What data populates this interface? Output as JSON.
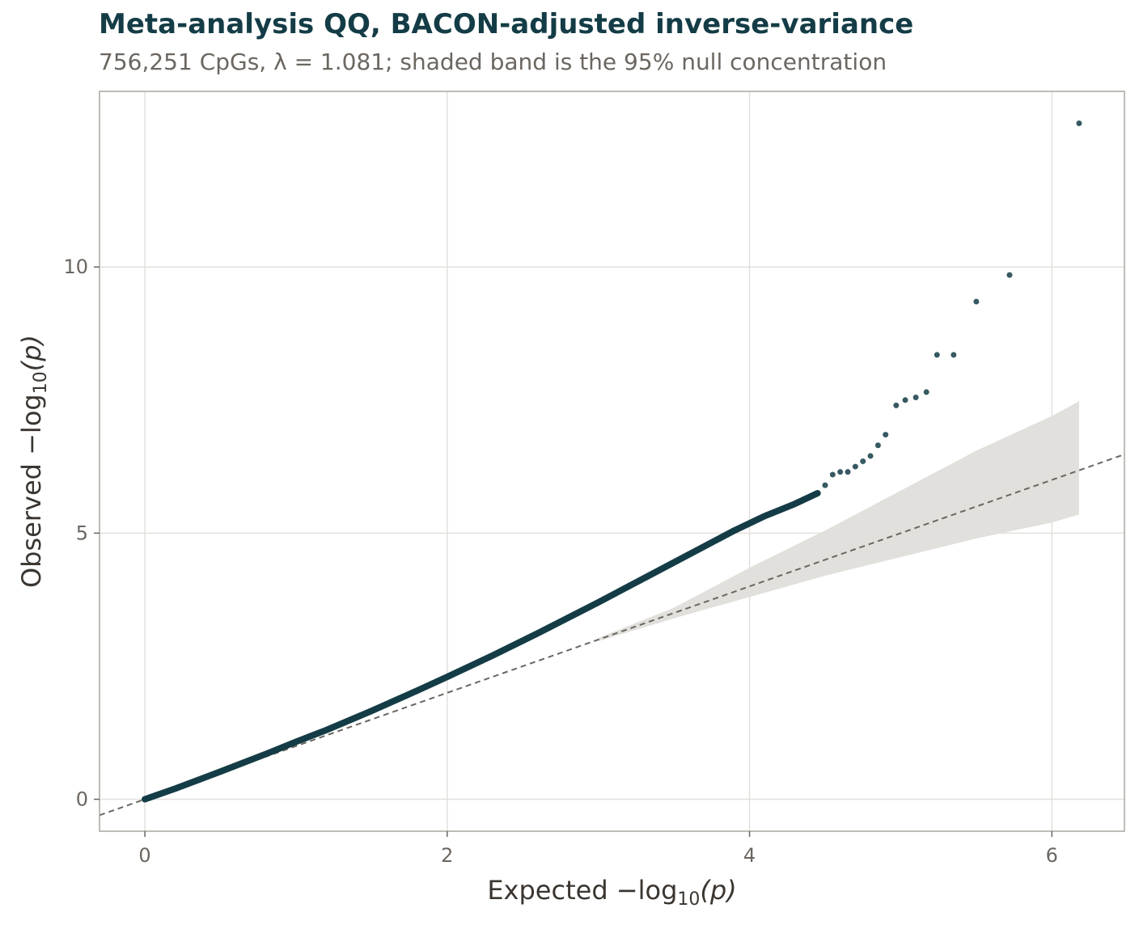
{
  "chart_data": {
    "type": "scatter",
    "title": "Meta-analysis QQ, BACON-adjusted inverse-variance",
    "subtitle": "756,251 CpGs, λ = 1.081; shaded band is the 95% null concentration",
    "xlabel": {
      "prefix": "Expected −log",
      "sub": "10",
      "suffix": "(p)"
    },
    "ylabel": {
      "prefix": "Observed −log",
      "sub": "10",
      "suffix": "(p)"
    },
    "xlim": [
      -0.3,
      6.48
    ],
    "ylim": [
      -0.6,
      13.3
    ],
    "x_ticks": [
      0,
      2,
      4,
      6
    ],
    "y_ticks": [
      0,
      5,
      10
    ],
    "grid": true,
    "n_tests": 756251,
    "lambda": 1.081,
    "reference_line": {
      "slope": 1,
      "intercept": 0,
      "style": "dashed"
    },
    "confidence_band": {
      "level": 0.95,
      "points": [
        {
          "x": 3.0,
          "lo": 2.97,
          "hi": 3.03
        },
        {
          "x": 3.5,
          "lo": 3.4,
          "hi": 3.6
        },
        {
          "x": 4.0,
          "lo": 3.8,
          "hi": 4.35
        },
        {
          "x": 4.5,
          "lo": 4.2,
          "hi": 5.05
        },
        {
          "x": 5.0,
          "lo": 4.55,
          "hi": 5.8
        },
        {
          "x": 5.5,
          "lo": 4.9,
          "hi": 6.55
        },
        {
          "x": 6.0,
          "lo": 5.2,
          "hi": 7.2
        },
        {
          "x": 6.18,
          "lo": 5.35,
          "hi": 7.48
        }
      ]
    },
    "curve": [
      [
        0,
        0
      ],
      [
        0.2,
        0.2
      ],
      [
        0.5,
        0.52
      ],
      [
        0.8,
        0.85
      ],
      [
        1.0,
        1.08
      ],
      [
        1.2,
        1.3
      ],
      [
        1.5,
        1.66
      ],
      [
        1.8,
        2.04
      ],
      [
        2.0,
        2.3
      ],
      [
        2.3,
        2.7
      ],
      [
        2.6,
        3.12
      ],
      [
        3.0,
        3.7
      ],
      [
        3.3,
        4.15
      ],
      [
        3.6,
        4.6
      ],
      [
        3.9,
        5.05
      ],
      [
        4.1,
        5.32
      ],
      [
        4.3,
        5.55
      ],
      [
        4.45,
        5.75
      ]
    ],
    "tail_points": [
      [
        4.5,
        5.9
      ],
      [
        4.55,
        6.1
      ],
      [
        4.6,
        6.15
      ],
      [
        4.65,
        6.15
      ],
      [
        4.7,
        6.25
      ],
      [
        4.75,
        6.35
      ],
      [
        4.8,
        6.45
      ],
      [
        4.85,
        6.65
      ],
      [
        4.9,
        6.85
      ],
      [
        4.97,
        7.4
      ],
      [
        5.03,
        7.5
      ],
      [
        5.1,
        7.55
      ],
      [
        5.17,
        7.65
      ],
      [
        5.24,
        8.35
      ],
      [
        5.35,
        8.35
      ],
      [
        5.5,
        9.35
      ],
      [
        5.72,
        9.85
      ],
      [
        6.18,
        12.7
      ]
    ],
    "colors": {
      "points": "#143c46",
      "band": "#e2e0dc",
      "reference_line": "#6b6660",
      "grid": "#e2e0dc",
      "panel_border": "#aaa69f"
    }
  }
}
